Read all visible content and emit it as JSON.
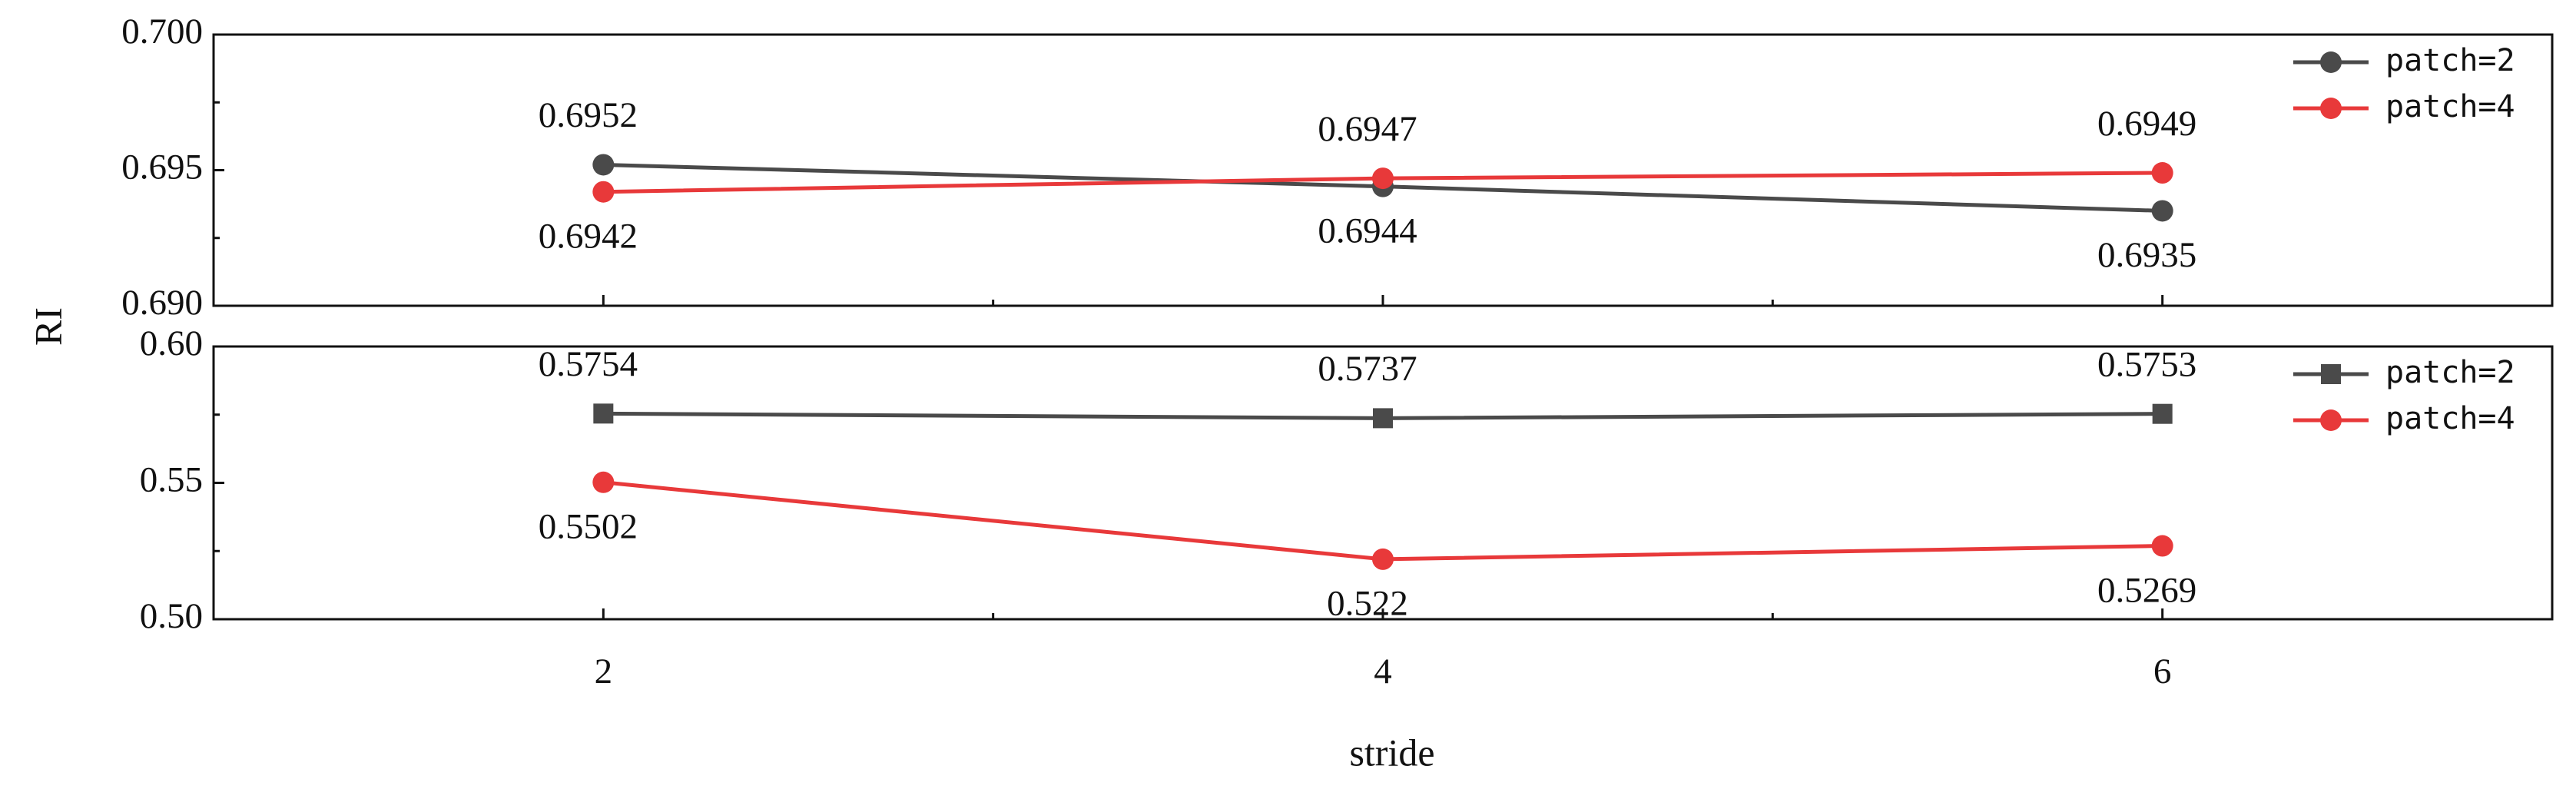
{
  "chart_data": [
    {
      "type": "line",
      "ylabel": "RI",
      "x": [
        2,
        4,
        6
      ],
      "xlim": [
        1,
        7
      ],
      "xticks": [
        2,
        4,
        6
      ],
      "ylim": [
        0.69,
        0.7
      ],
      "yticks": [
        {
          "value": 0.69,
          "label": "0.690"
        },
        0.695,
        {
          "value": 0.7,
          "label": "0.700"
        }
      ],
      "legend": "top-right",
      "series": [
        {
          "name": "patch=2",
          "color": "#4a4a4a",
          "marker": "circle",
          "values": [
            0.6952,
            0.6944,
            0.6935
          ]
        },
        {
          "name": "patch=4",
          "color": "#e8393a",
          "marker": "circle",
          "values": [
            0.6942,
            0.6947,
            0.6949
          ]
        }
      ]
    },
    {
      "type": "line",
      "xlabel": "stride",
      "x": [
        2,
        4,
        6
      ],
      "xlim": [
        1,
        7
      ],
      "xticks": [
        2,
        4,
        6
      ],
      "ylim": [
        0.5,
        0.6
      ],
      "yticks": [
        {
          "value": 0.5,
          "label": "0.50"
        },
        0.55,
        {
          "value": 0.6,
          "label": "0.60"
        }
      ],
      "legend": "top-right",
      "series": [
        {
          "name": "patch=2",
          "color": "#4a4a4a",
          "marker": "square",
          "values": [
            0.5754,
            0.5737,
            0.5753
          ]
        },
        {
          "name": "patch=4",
          "color": "#e8393a",
          "marker": "circle",
          "values": [
            0.5502,
            0.522,
            0.5269
          ]
        }
      ]
    }
  ]
}
